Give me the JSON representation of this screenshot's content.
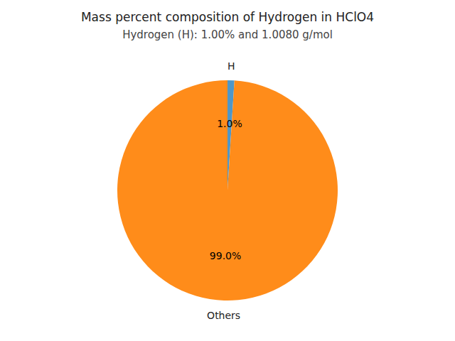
{
  "chart_data": {
    "type": "pie",
    "title": "Mass percent composition of Hydrogen in HClO4",
    "subtitle": "Hydrogen (H): 1.00% and 1.0080 g/mol",
    "categories": [
      "H",
      "Others"
    ],
    "values": [
      1.0,
      99.0
    ],
    "value_labels": [
      "1.0%",
      "99.0%"
    ],
    "colors": [
      "#4f97c8",
      "#ff8c1a"
    ],
    "data_labels": true
  }
}
